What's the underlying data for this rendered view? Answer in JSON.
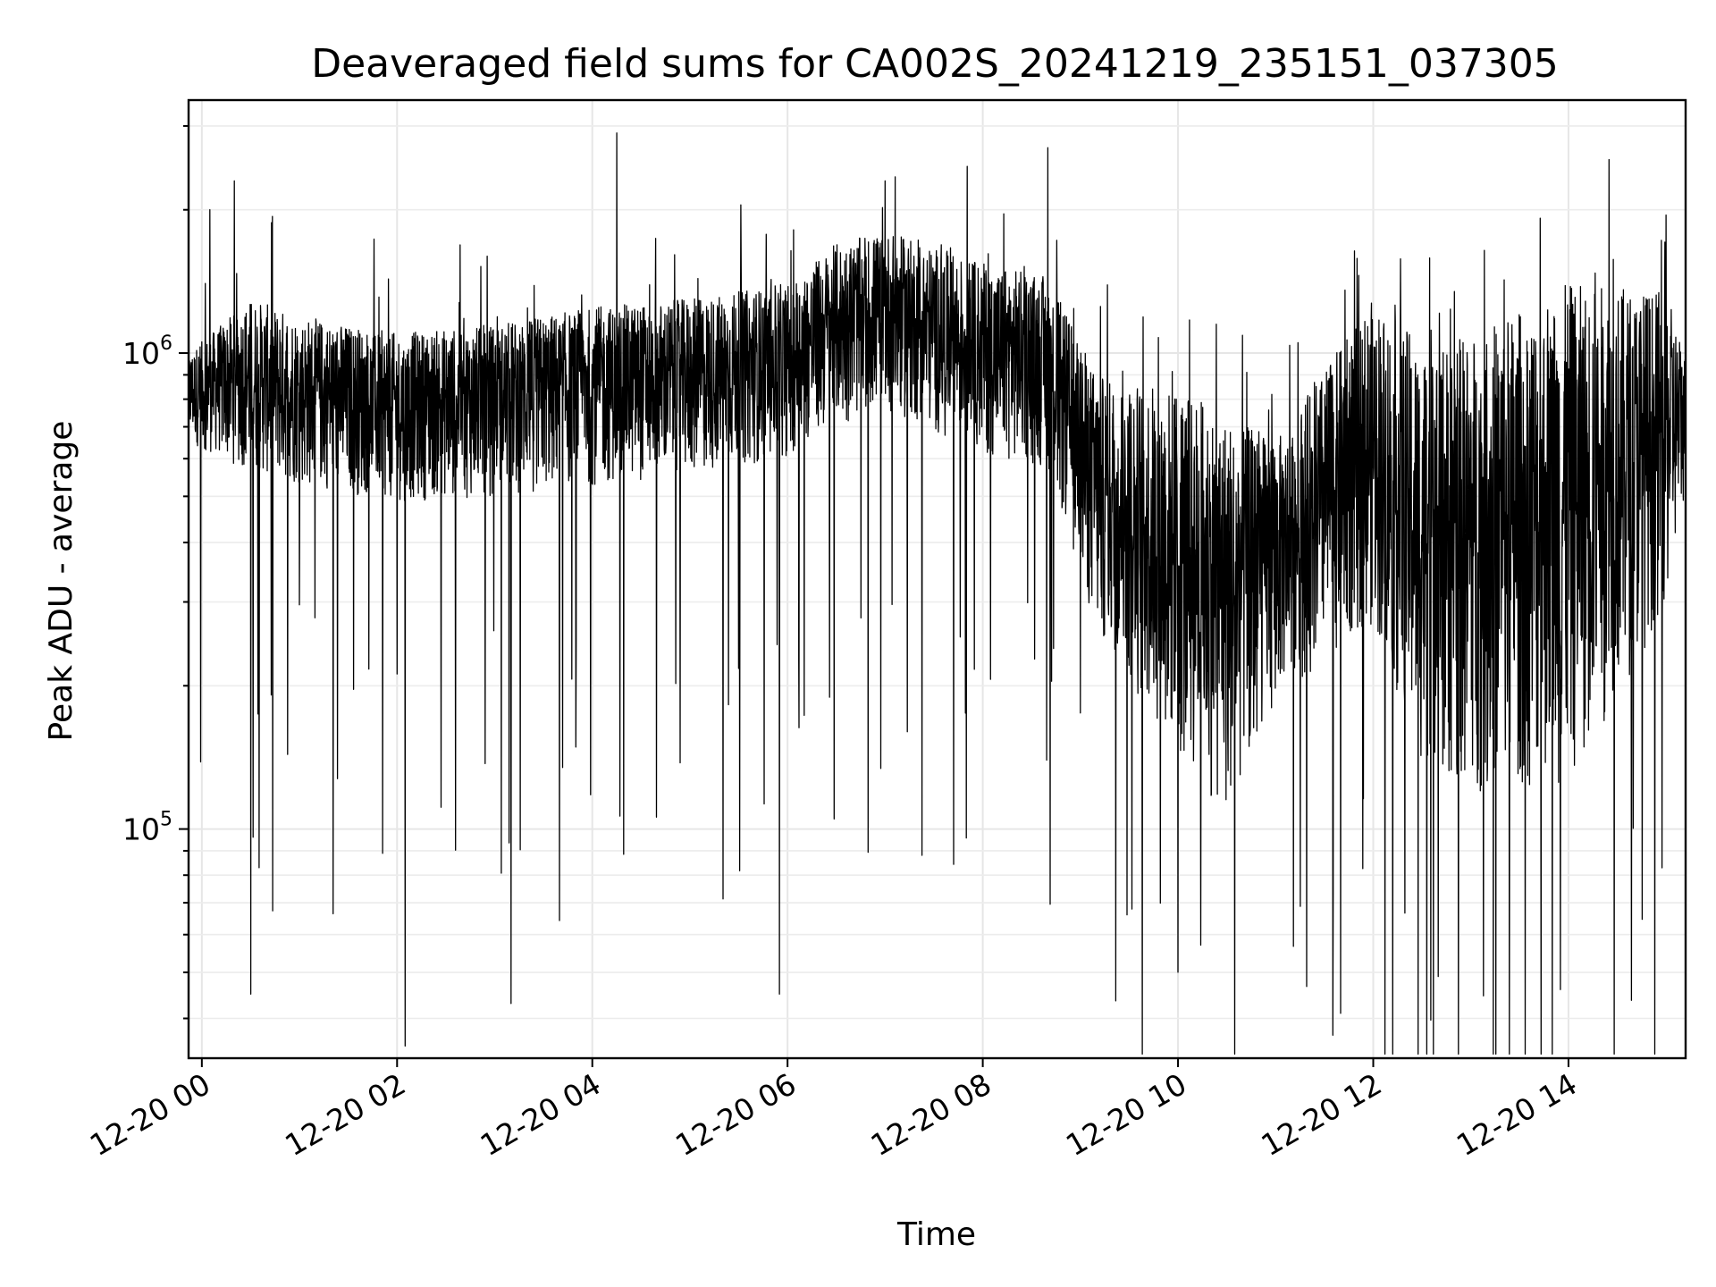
{
  "chart_data": {
    "type": "line",
    "title": "Deaveraged field sums for CA002S_20241219_235151_037305",
    "xlabel": "Time",
    "ylabel": "Peak ADU - average",
    "yscale": "log",
    "xlim": [
      "2024-12-19T23:51:51",
      "2024-12-20T15:12:00"
    ],
    "ylim": [
      33000,
      3400000
    ],
    "grid": true,
    "x_ticks": [
      {
        "value": "2024-12-20T00:00",
        "label": "12-20 00"
      },
      {
        "value": "2024-12-20T02:00",
        "label": "12-20 02"
      },
      {
        "value": "2024-12-20T04:00",
        "label": "12-20 04"
      },
      {
        "value": "2024-12-20T06:00",
        "label": "12-20 06"
      },
      {
        "value": "2024-12-20T08:00",
        "label": "12-20 08"
      },
      {
        "value": "2024-12-20T10:00",
        "label": "12-20 10"
      },
      {
        "value": "2024-12-20T12:00",
        "label": "12-20 12"
      },
      {
        "value": "2024-12-20T14:00",
        "label": "12-20 14"
      }
    ],
    "y_ticks": [
      {
        "value": 100000,
        "base": "10",
        "exp": "5"
      },
      {
        "value": 1000000,
        "base": "10",
        "exp": "6"
      }
    ],
    "series_envelope": {
      "x": [
        "2024-12-19T23:51:51",
        "2024-12-20T00:30",
        "2024-12-20T01:00",
        "2024-12-20T02:00",
        "2024-12-20T03:00",
        "2024-12-20T04:00",
        "2024-12-20T05:00",
        "2024-12-20T06:00",
        "2024-12-20T06:30",
        "2024-12-20T07:00",
        "2024-12-20T08:00",
        "2024-12-20T08:40",
        "2024-12-20T09:10",
        "2024-12-20T10:00",
        "2024-12-20T10:30",
        "2024-12-20T11:00",
        "2024-12-20T12:00",
        "2024-12-20T12:30",
        "2024-12-20T13:00",
        "2024-12-20T14:00",
        "2024-12-20T15:00",
        "2024-12-20T15:12"
      ],
      "upper": [
        1000000,
        1300000,
        1200000,
        1100000,
        1150000,
        1250000,
        1300000,
        1400000,
        1700000,
        1800000,
        1550000,
        1450000,
        900000,
        850000,
        750000,
        650000,
        1300000,
        1050000,
        1100000,
        1400000,
        1350000,
        1000000
      ],
      "lower": [
        600000,
        480000,
        450000,
        420000,
        430000,
        450000,
        470000,
        520000,
        600000,
        650000,
        520000,
        480000,
        200000,
        100000,
        75000,
        150000,
        200000,
        90000,
        80000,
        80000,
        220000,
        450000
      ],
      "spikes_up": [
        {
          "x": "2024-12-20T00:05",
          "y": 2000000
        },
        {
          "x": "2024-12-20T00:20",
          "y": 2300000
        },
        {
          "x": "2024-12-20T04:15",
          "y": 2900000
        },
        {
          "x": "2024-12-20T07:00",
          "y": 2300000
        },
        {
          "x": "2024-12-20T08:40",
          "y": 2700000
        },
        {
          "x": "2024-12-20T14:25",
          "y": 2550000
        },
        {
          "x": "2024-12-20T15:00",
          "y": 1950000
        }
      ],
      "spikes_down": [
        {
          "x": "2024-12-20T00:30",
          "y": 45000
        },
        {
          "x": "2024-12-20T02:05",
          "y": 35000
        },
        {
          "x": "2024-12-20T03:10",
          "y": 43000
        },
        {
          "x": "2024-12-20T05:55",
          "y": 45000
        },
        {
          "x": "2024-12-20T10:00",
          "y": 50000
        },
        {
          "x": "2024-12-20T11:40",
          "y": 41000
        },
        {
          "x": "2024-12-20T12:40",
          "y": 49000
        },
        {
          "x": "2024-12-20T13:55",
          "y": 46000
        }
      ]
    }
  }
}
